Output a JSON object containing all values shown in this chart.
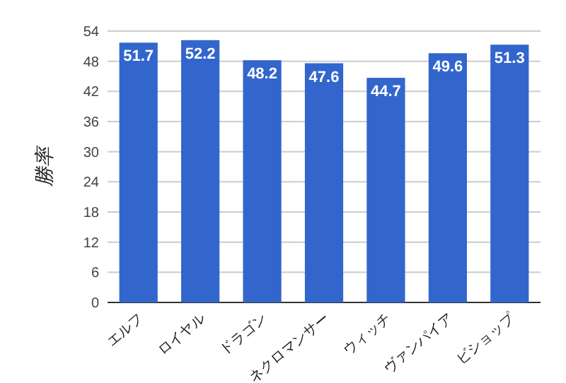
{
  "chart_data": {
    "type": "bar",
    "ylabel": "勝率",
    "categories": [
      "エルフ",
      "ロイヤル",
      "ドラゴン",
      "ネクロマンサー",
      "ウィッチ",
      "ヴァンパイア",
      "ビショップ"
    ],
    "values": [
      51.7,
      52.2,
      48.2,
      47.6,
      44.7,
      49.6,
      51.3
    ],
    "color": "#3366cc",
    "ylim": [
      0,
      54
    ],
    "yticks": [
      0,
      6,
      12,
      18,
      24,
      30,
      36,
      42,
      48,
      54
    ],
    "grid": "y",
    "data_labels": true
  }
}
